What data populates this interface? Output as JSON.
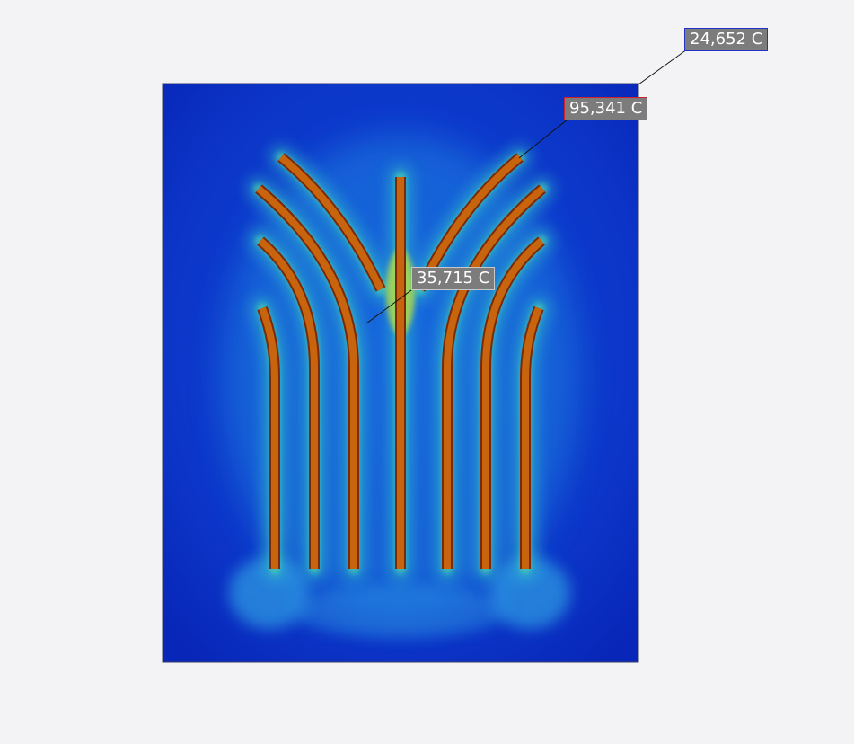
{
  "probes": {
    "max": {
      "label": "95,341 C",
      "border_color": "#d0202a"
    },
    "min": {
      "label": "24,652 C",
      "border_color": "#2233cc"
    },
    "mid": {
      "label": "35,715 C",
      "border_color": "#c8c8c8"
    }
  },
  "colors": {
    "background": "#f3f2f4",
    "cold": "#0a2fc4",
    "warm": "#27c9b0",
    "fin": "#c8620e",
    "fin_edge": "#8a2a06"
  },
  "icons": {
    "field": "temperature-field-map"
  }
}
